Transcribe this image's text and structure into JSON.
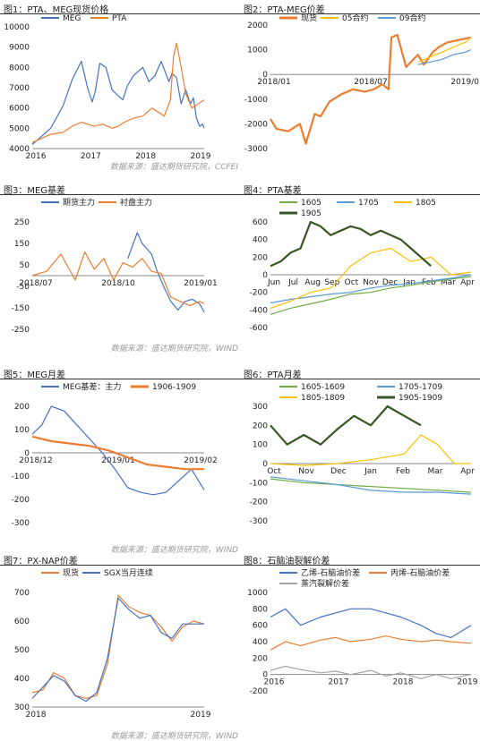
{
  "panels": [
    {
      "title": "图1：PTA、MEG现货价格",
      "source": "数据来源：盛达期货研究院，CCFEI"
    },
    {
      "title": "图2：PTA-MEG价差",
      "source": ""
    },
    {
      "title": "图3：MEG基差",
      "source": "数据来源：盛达期货研究院，WIND"
    },
    {
      "title": "图4：PTA基差",
      "source": ""
    },
    {
      "title": "图5：MEG月差",
      "source": "数据来源：盛达期货研究院，WIND"
    },
    {
      "title": "图6：PTA月差",
      "source": ""
    },
    {
      "title": "图7：PX-NAP价差",
      "source": "数据来源：盛达期货研究院，WIND"
    },
    {
      "title": "图8：石脑油裂解价差",
      "source": ""
    }
  ],
  "chart_data": [
    {
      "type": "line",
      "xlabels": [
        "2016",
        "2017",
        "2018",
        "2019"
      ],
      "ylim": [
        4000,
        10000
      ],
      "yticks": [
        4000,
        5000,
        6000,
        7000,
        8000,
        9000,
        10000
      ],
      "legend": "top",
      "series": [
        {
          "name": "MEG",
          "color": "#4472c4",
          "x": [
            0,
            0.3,
            0.6,
            1.0,
            1.3,
            1.6,
            1.8,
            1.95,
            2.05,
            2.2,
            2.4,
            2.6,
            2.8,
            2.95,
            3.1,
            3.3,
            3.6,
            3.8,
            4.0,
            4.2,
            4.35,
            4.45,
            4.55,
            4.7,
            4.85,
            5.0,
            5.15,
            5.25,
            5.35,
            5.45,
            5.55,
            5.6
          ],
          "y": [
            4200,
            4600,
            5000,
            6100,
            7400,
            8300,
            7000,
            6300,
            6800,
            8200,
            8000,
            6900,
            6600,
            6400,
            7100,
            7600,
            8000,
            7300,
            7600,
            8300,
            7700,
            7300,
            7700,
            7500,
            6200,
            6900,
            6200,
            6500,
            5500,
            5100,
            5200,
            5000
          ]
        },
        {
          "name": "PTA",
          "color": "#ed7d31",
          "x": [
            0,
            0.3,
            0.6,
            1.0,
            1.3,
            1.6,
            2.0,
            2.3,
            2.6,
            2.8,
            3.0,
            3.3,
            3.6,
            3.9,
            4.1,
            4.3,
            4.5,
            4.6,
            4.7,
            4.85,
            5.0,
            5.2,
            5.4,
            5.6
          ],
          "y": [
            4300,
            4500,
            4700,
            4800,
            5100,
            5300,
            5100,
            5200,
            5000,
            5100,
            5300,
            5500,
            5600,
            6000,
            5800,
            5600,
            6400,
            8500,
            9200,
            8000,
            6700,
            6000,
            6200,
            6400
          ]
        }
      ]
    },
    {
      "type": "line",
      "xlabels": [
        "2018/01",
        "2018/07",
        "2019/01"
      ],
      "ylim": [
        -3000,
        2000
      ],
      "yticks": [
        -3000,
        -2000,
        -1000,
        0,
        1000,
        2000
      ],
      "legend": "top",
      "series": [
        {
          "name": "现货",
          "color": "#ed7d31",
          "x": [
            0,
            0.1,
            0.3,
            0.5,
            0.6,
            0.75,
            0.85,
            1.0,
            1.2,
            1.4,
            1.6,
            1.75,
            1.9,
            2.0,
            2.05,
            2.15,
            2.3,
            2.5,
            2.6,
            2.75,
            2.85,
            3.0,
            3.2,
            3.4
          ],
          "y": [
            -1800,
            -2200,
            -2300,
            -2000,
            -2800,
            -1600,
            -1700,
            -1100,
            -800,
            -600,
            -700,
            -600,
            -400,
            -600,
            1500,
            1600,
            300,
            800,
            400,
            900,
            1100,
            1300,
            1400,
            1500
          ]
        },
        {
          "name": "05合约",
          "color": "#ffc000",
          "x": [
            2.5,
            2.7,
            2.9,
            3.1,
            3.3,
            3.4
          ],
          "y": [
            500,
            700,
            900,
            1100,
            1300,
            1500
          ]
        },
        {
          "name": "09合约",
          "color": "#5b9bd5",
          "x": [
            2.5,
            2.7,
            2.9,
            3.1,
            3.3,
            3.4
          ],
          "y": [
            400,
            500,
            600,
            800,
            900,
            1000
          ]
        }
      ]
    },
    {
      "type": "line",
      "xlabels": [
        "2018/07",
        "2018/10",
        "2019/01"
      ],
      "ylim": [
        -250,
        250
      ],
      "yticks": [
        -250,
        -150,
        -50,
        50,
        150,
        250
      ],
      "legend": "top",
      "series": [
        {
          "name": "期货主力",
          "color": "#4472c4",
          "x": [
            2.0,
            2.2,
            2.3,
            2.5,
            2.6,
            2.75,
            2.9,
            3.05,
            3.2,
            3.35,
            3.5,
            3.6
          ],
          "y": [
            80,
            200,
            150,
            100,
            30,
            -50,
            -120,
            -160,
            -120,
            -110,
            -130,
            -170
          ]
        },
        {
          "name": "衬盘主力",
          "color": "#ed7d31",
          "x": [
            0,
            0.3,
            0.6,
            0.9,
            1.1,
            1.3,
            1.5,
            1.7,
            1.9,
            2.1,
            2.3,
            2.5,
            2.7,
            2.9,
            3.1,
            3.3,
            3.5,
            3.6
          ],
          "y": [
            0,
            20,
            100,
            -20,
            110,
            30,
            80,
            -20,
            60,
            40,
            80,
            20,
            10,
            -100,
            -120,
            -140,
            -120,
            -130
          ]
        }
      ]
    },
    {
      "type": "line",
      "xlabels": [
        "Jun",
        "Jul",
        "Aug",
        "Sep",
        "Oct",
        "Nov",
        "Dec",
        "Jan",
        "Feb",
        "Mar",
        "Apr"
      ],
      "ylim": [
        -600,
        600
      ],
      "yticks": [
        -600,
        -400,
        -200,
        0,
        200,
        400,
        600
      ],
      "legend": "top",
      "series": [
        {
          "name": "1605",
          "color": "#70ad47",
          "x": [
            0,
            1,
            2,
            3,
            4,
            5,
            6,
            7,
            8,
            9,
            10
          ],
          "y": [
            -450,
            -380,
            -330,
            -280,
            -220,
            -200,
            -150,
            -120,
            -80,
            -50,
            -20
          ]
        },
        {
          "name": "1705",
          "color": "#5b9bd5",
          "x": [
            0,
            1,
            2,
            3,
            4,
            5,
            6,
            7,
            8,
            9,
            10
          ],
          "y": [
            -320,
            -280,
            -250,
            -220,
            -200,
            -150,
            -120,
            -100,
            -70,
            -40,
            0
          ]
        },
        {
          "name": "1805",
          "color": "#ffc000",
          "x": [
            0,
            1,
            2,
            3,
            4,
            5,
            6,
            7,
            8,
            9,
            10
          ],
          "y": [
            -380,
            -300,
            -200,
            -150,
            100,
            250,
            300,
            150,
            200,
            0,
            30
          ]
        },
        {
          "name": "1905",
          "color": "#375623",
          "x": [
            0,
            0.5,
            1,
            1.5,
            2,
            2.5,
            3,
            3.5,
            4,
            4.5,
            5,
            5.5,
            6,
            6.5,
            7,
            7.5,
            8
          ],
          "y": [
            100,
            150,
            250,
            300,
            600,
            550,
            450,
            500,
            550,
            520,
            450,
            500,
            450,
            400,
            300,
            200,
            100
          ]
        }
      ]
    },
    {
      "type": "line",
      "xlabels": [
        "2018/12",
        "2019/01",
        "2019/02"
      ],
      "ylim": [
        -300,
        200
      ],
      "yticks": [
        -300,
        -200,
        -100,
        0,
        100,
        200
      ],
      "legend": "top",
      "series": [
        {
          "name": "MEG基差：主力",
          "color": "#4472c4",
          "x": [
            0,
            0.15,
            0.3,
            0.5,
            0.7,
            0.9,
            1.1,
            1.3,
            1.5,
            1.7,
            1.9,
            2.1,
            2.3,
            2.5,
            2.7
          ],
          "y": [
            80,
            120,
            200,
            180,
            120,
            60,
            0,
            -70,
            -150,
            -170,
            -180,
            -170,
            -120,
            -70,
            -160
          ]
        },
        {
          "name": "1906-1909",
          "color": "#ed7d31",
          "x": [
            0,
            0.3,
            0.6,
            0.9,
            1.2,
            1.5,
            1.8,
            2.1,
            2.4,
            2.7
          ],
          "y": [
            70,
            50,
            40,
            30,
            10,
            -20,
            -50,
            -60,
            -70,
            -70
          ]
        }
      ]
    },
    {
      "type": "line",
      "xlabels": [
        "Oct",
        "Nov",
        "Dec",
        "Jan",
        "Feb",
        "Mar",
        "Apr"
      ],
      "ylim": [
        -300,
        300
      ],
      "yticks": [
        -300,
        -200,
        -100,
        0,
        100,
        200,
        300
      ],
      "legend": "top",
      "series": [
        {
          "name": "1605-1609",
          "color": "#70ad47",
          "x": [
            0,
            1,
            2,
            3,
            4,
            5,
            6
          ],
          "y": [
            -80,
            -100,
            -110,
            -120,
            -130,
            -140,
            -150
          ]
        },
        {
          "name": "1705-1709",
          "color": "#5b9bd5",
          "x": [
            0,
            1,
            2,
            3,
            4,
            5,
            6
          ],
          "y": [
            -70,
            -90,
            -110,
            -140,
            -150,
            -150,
            -160
          ]
        },
        {
          "name": "1805-1809",
          "color": "#ffc000",
          "x": [
            0,
            1,
            2,
            3,
            4,
            4.5,
            5,
            5.5,
            6
          ],
          "y": [
            0,
            -10,
            0,
            20,
            50,
            150,
            100,
            0,
            0
          ]
        },
        {
          "name": "1905-1909",
          "color": "#375623",
          "x": [
            0,
            0.5,
            1,
            1.5,
            2,
            2.5,
            3,
            3.5,
            4,
            4.5
          ],
          "y": [
            200,
            100,
            150,
            100,
            180,
            250,
            200,
            300,
            250,
            200
          ]
        }
      ]
    },
    {
      "type": "line",
      "xlabels": [
        "2018",
        "2019"
      ],
      "ylim": [
        300,
        700
      ],
      "yticks": [
        300,
        400,
        500,
        600,
        700
      ],
      "legend": "top",
      "series": [
        {
          "name": "现货",
          "color": "#ed7d31",
          "x": [
            0,
            0.2,
            0.4,
            0.6,
            0.8,
            1.0,
            1.2,
            1.4,
            1.6,
            1.8,
            2.0,
            2.2,
            2.4,
            2.6,
            2.8,
            3.0,
            3.2
          ],
          "y": [
            350,
            360,
            420,
            400,
            340,
            330,
            340,
            450,
            690,
            650,
            630,
            620,
            580,
            530,
            580,
            600,
            590
          ]
        },
        {
          "name": "SGX当月连续",
          "color": "#4472c4",
          "x": [
            0,
            0.2,
            0.4,
            0.6,
            0.8,
            1.0,
            1.2,
            1.4,
            1.6,
            1.8,
            2.0,
            2.2,
            2.4,
            2.6,
            2.8,
            3.0,
            3.2
          ],
          "y": [
            330,
            370,
            410,
            390,
            340,
            320,
            350,
            470,
            680,
            640,
            610,
            620,
            560,
            540,
            590,
            590,
            590
          ]
        }
      ]
    },
    {
      "type": "line",
      "xlabels": [
        "2016",
        "2017",
        "2018",
        "2019"
      ],
      "ylim": [
        -200,
        1000
      ],
      "yticks": [
        -200,
        0,
        200,
        400,
        600,
        800,
        1000
      ],
      "legend": "top",
      "series": [
        {
          "name": "乙烯-石脑油价差",
          "color": "#4472c4",
          "x": [
            0,
            0.3,
            0.6,
            1.0,
            1.3,
            1.6,
            2.0,
            2.3,
            2.6,
            3.0,
            3.3,
            3.6,
            4.0
          ],
          "y": [
            700,
            800,
            600,
            700,
            750,
            800,
            800,
            750,
            700,
            600,
            500,
            450,
            600
          ]
        },
        {
          "name": "丙烯-石脑油价差",
          "color": "#ed7d31",
          "x": [
            0,
            0.3,
            0.6,
            1.0,
            1.3,
            1.6,
            2.0,
            2.3,
            2.6,
            3.0,
            3.3,
            3.6,
            4.0
          ],
          "y": [
            300,
            400,
            350,
            420,
            450,
            400,
            430,
            470,
            430,
            400,
            420,
            400,
            380
          ]
        },
        {
          "name": "蒸汽裂解价差",
          "color": "#a5a5a5",
          "x": [
            0,
            0.3,
            0.6,
            1.0,
            1.3,
            1.6,
            2.0,
            2.3,
            2.6,
            3.0,
            3.3,
            3.6,
            4.0
          ],
          "y": [
            50,
            100,
            60,
            20,
            40,
            0,
            50,
            -20,
            20,
            -50,
            0,
            -50,
            0
          ]
        }
      ]
    }
  ]
}
